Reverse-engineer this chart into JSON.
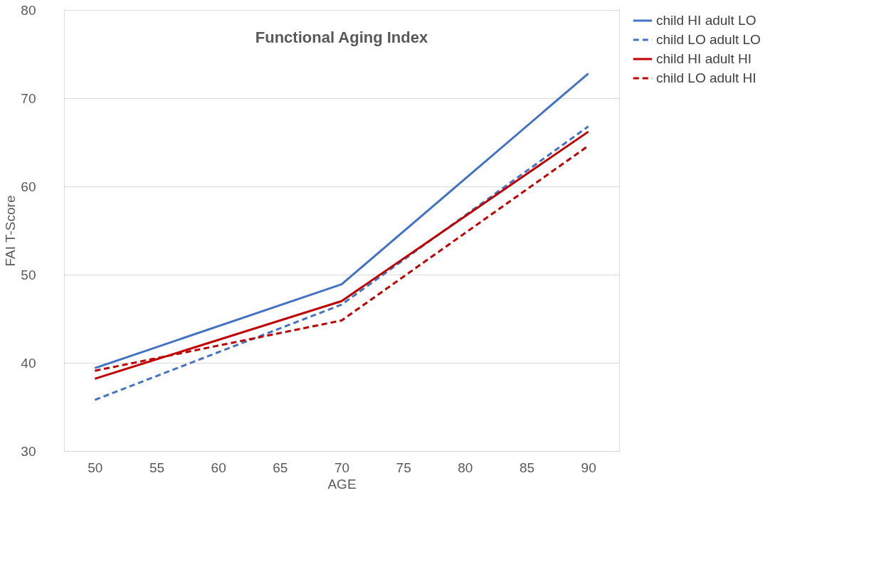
{
  "chart_data": {
    "type": "line",
    "title": "Functional Aging Index",
    "xlabel": "AGE",
    "ylabel": "FAI T-Score",
    "x": [
      50,
      70,
      90
    ],
    "series": [
      {
        "name": "child HI adult LO",
        "color": "#4472c4",
        "line_style": "solid",
        "values": [
          39.4,
          48.9,
          72.8
        ]
      },
      {
        "name": "child LO adult LO",
        "color": "#4472c4",
        "line_style": "dashed",
        "values": [
          35.8,
          46.6,
          66.8
        ]
      },
      {
        "name": "child HI adult HI",
        "color": "#c00000",
        "line_style": "solid",
        "values": [
          38.2,
          47.0,
          66.2
        ]
      },
      {
        "name": "child LO adult HI",
        "color": "#c00000",
        "line_style": "dashed",
        "values": [
          39.1,
          44.8,
          64.6
        ]
      }
    ],
    "xlim": [
      47.5,
      92.5
    ],
    "xticks": [
      50,
      55,
      60,
      65,
      70,
      75,
      80,
      85,
      90
    ],
    "ylim": [
      30,
      80
    ],
    "yticks": [
      30,
      40,
      50,
      60,
      70,
      80
    ],
    "grid": "y",
    "legend": "right",
    "marker": "none"
  }
}
